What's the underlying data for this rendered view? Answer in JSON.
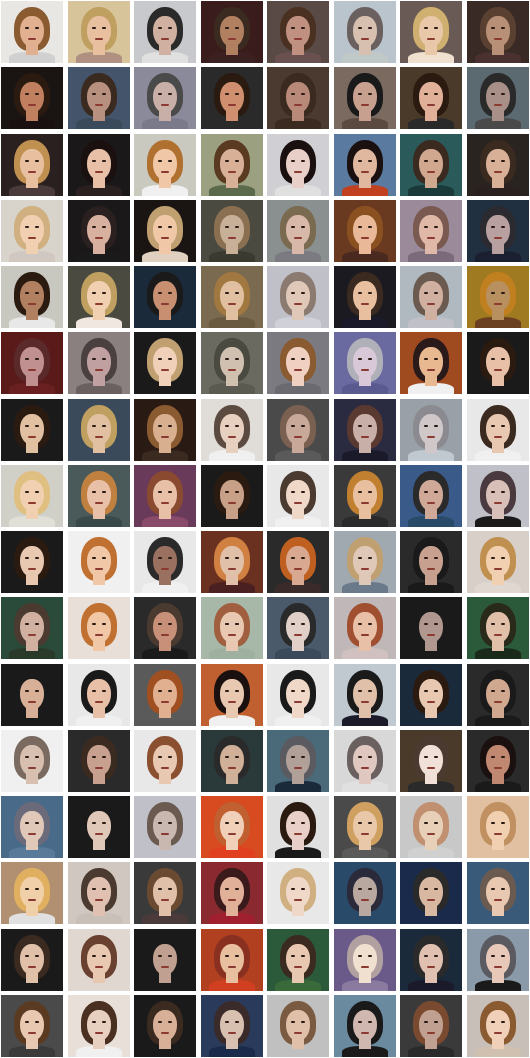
{
  "grid": {
    "rows": 16,
    "columns": 8,
    "description_key": "generated-face-samples",
    "tiles": [
      [
        "#e9e7e3",
        "#d8c49a",
        "#c8c9cc",
        "#3a1c1c",
        "#5a4a45",
        "#b9c4cc",
        "#6a5a55",
        "#3a2a25"
      ],
      [
        "#1a1412",
        "#44546a",
        "#8a8a9a",
        "#2a2a2a",
        "#4a3a30",
        "#7a6a60",
        "#4a3a2a",
        "#5a6a70"
      ],
      [
        "#2a2020",
        "#1a1818",
        "#c9c9c0",
        "#9aa080",
        "#d0d0d4",
        "#5a7aa0",
        "#2a5a5a",
        "#2a2420"
      ],
      [
        "#d8d4cc",
        "#1a1818",
        "#1a1412",
        "#4a4a40",
        "#8a9090",
        "#6a3a20",
        "#9a8a9a",
        "#203040"
      ],
      [
        "#c8c8c0",
        "#4a4a40",
        "#1a2a3a",
        "#7a6a50",
        "#c0c0c8",
        "#1a1a20",
        "#b0b8c0",
        "#a07a20"
      ],
      [
        "#5a1a1a",
        "#8a8080",
        "#1a1a1a",
        "#6a6a60",
        "#7a7a80",
        "#6a6aa0",
        "#a04a20",
        "#1a1a1a"
      ],
      [
        "#1a1a1a",
        "#3a4a5a",
        "#2a1a14",
        "#e0dcd8",
        "#4a4a4a",
        "#2a2a40",
        "#9aa0a8",
        "#e8e8e8"
      ],
      [
        "#d0d0c8",
        "#4a5a5a",
        "#6a3a5a",
        "#1a1a1a",
        "#e8e8e8",
        "#3a3a3a",
        "#3a5a8a",
        "#c0c0c8"
      ],
      [
        "#1a1a1a",
        "#f0f0f0",
        "#e8e8e8",
        "#6a3020",
        "#2a2a2a",
        "#a0a8b0",
        "#2a2a2a",
        "#d8d0c8"
      ],
      [
        "#2a4a3a",
        "#e8e0d8",
        "#2a2a2a",
        "#a8b8a8",
        "#4a5a6a",
        "#c0b8b8",
        "#1a1a1a",
        "#2a5a3a"
      ],
      [
        "#1a1a1a",
        "#e8e8e8",
        "#5a5a5a",
        "#c06030",
        "#e8e8e8",
        "#c0c8d0",
        "#1a2a3a",
        "#2a2a2a"
      ],
      [
        "#f0f0f0",
        "#2a2a2a",
        "#e8e8e8",
        "#2a3a3a",
        "#4a6a7a",
        "#d8d8d8",
        "#4a3a2a",
        "#2a2a2a"
      ],
      [
        "#4a6a8a",
        "#1a1a1a",
        "#c0c0c8",
        "#d84a20",
        "#e0e0e0",
        "#4a4a4a",
        "#c8c8c8",
        "#e0c0a0"
      ],
      [
        "#b09070",
        "#d0c8c0",
        "#3a3a3a",
        "#8a2a30",
        "#e8e8e8",
        "#2a4a6a",
        "#1a2a4a",
        "#3a5a7a"
      ],
      [
        "#1a1a1a",
        "#e0d8d0",
        "#1a1a1a",
        "#b04020",
        "#2a5a3a",
        "#6a5a8a",
        "#1a2a3a",
        "#8a9aa8"
      ],
      [
        "#4a4a4a",
        "#e8e0d8",
        "#1a1a1a",
        "#2a3a5a",
        "#c0c0c0",
        "#6a8aa0",
        "#3a3a3a",
        "#c8c0b8"
      ]
    ],
    "skin": [
      [
        "#e0b090",
        "#e8c0a0",
        "#d0b0a0",
        "#b08060",
        "#c09080",
        "#d8c0b0",
        "#e8c8a8",
        "#b89078"
      ],
      [
        "#c08060",
        "#b89080",
        "#c8b0a8",
        "#d09070",
        "#b88878",
        "#c8a090",
        "#e0b098",
        "#a89088"
      ],
      [
        "#e8c0a0",
        "#e8c0a8",
        "#f0c8a8",
        "#d8b098",
        "#e8d0c8",
        "#e0b8a0",
        "#d0a890",
        "#d8b098"
      ],
      [
        "#f0d0b0",
        "#d8b0a0",
        "#f0c8a8",
        "#c8b098",
        "#d8b8a8",
        "#e8b898",
        "#e0b8a8",
        "#b8a0a0"
      ],
      [
        "#b08060",
        "#f0d0b0",
        "#c89070",
        "#e0c0a0",
        "#e0c8b8",
        "#e8c0a0",
        "#d0b0a0",
        "#b89060"
      ],
      [
        "#c09090",
        "#c0a0a0",
        "#f0d0b8",
        "#d0c0b0",
        "#f0d0c0",
        "#d8c8d8",
        "#e8b890",
        "#e8c0a8"
      ],
      [
        "#e0c0a0",
        "#e0c0a0",
        "#d8b090",
        "#e8d0c0",
        "#c8a898",
        "#c8b0a8",
        "#d0c8c8",
        "#e8c8b0"
      ],
      [
        "#f0d0b0",
        "#e8c0a8",
        "#e8c0a8",
        "#c8a088",
        "#f0d8c8",
        "#e8c0a0",
        "#d0a898",
        "#d8c0b8"
      ],
      [
        "#e8c8b0",
        "#f0c8a8",
        "#9a7060",
        "#e0c0a8",
        "#d8a890",
        "#e0c8b8",
        "#c8a090",
        "#f0d0b0"
      ],
      [
        "#d0b0a0",
        "#f0c8a8",
        "#c89078",
        "#e8c8b0",
        "#e0d0c8",
        "#e8c0a8",
        "#b09890",
        "#e0c0a8"
      ],
      [
        "#d8b098",
        "#e8c0a8",
        "#e0b090",
        "#e8c8b0",
        "#f0d8c8",
        "#e0c0a8",
        "#e8c8b0",
        "#d0a890"
      ],
      [
        "#d8c0b0",
        "#c8a090",
        "#e8c8b0",
        "#d0b098",
        "#b0a098",
        "#e0c8c0",
        "#f0e0d8",
        "#c08870"
      ],
      [
        "#e0c8b8",
        "#e0c8b8",
        "#c8b8b0",
        "#f0d0b8",
        "#e8d0c8",
        "#e8c8a8",
        "#e8d0b8",
        "#f0d0b0"
      ],
      [
        "#f0d0a8",
        "#e0c0b0",
        "#e0c0a8",
        "#e0b098",
        "#f0d8c8",
        "#b8a8a0",
        "#d8b8a0",
        "#e8c8b0"
      ],
      [
        "#e0c0a8",
        "#e8c8b0",
        "#c0a090",
        "#e8c0a0",
        "#e8c8b0",
        "#f0e0d0",
        "#e0c0b0",
        "#e8c8b8"
      ],
      [
        "#e8c8b0",
        "#e8d0c0",
        "#d8b098",
        "#d8c0b0",
        "#e0c0a8",
        "#d0b8b0",
        "#c0a090",
        "#f0d0b8"
      ]
    ],
    "hair": [
      [
        "#8a5a30",
        "#c0a060",
        "#2a2a2a",
        "#3a2a20",
        "#4a3020",
        "#6a6060",
        "#d0b070",
        "#5a4030"
      ],
      [
        "#2a1a10",
        "#3a2a20",
        "#4a4a4a",
        "#2a1a10",
        "#3a2a20",
        "#1a1a1a",
        "#2a1a10",
        "#2a2a2a"
      ],
      [
        "#c09050",
        "#1a1010",
        "#b07030",
        "#5a3a20",
        "#1a1010",
        "#1a1010",
        "#3a2a20",
        "#3a2a20"
      ],
      [
        "#d0b080",
        "#2a2020",
        "#c0a070",
        "#8a7050",
        "#7a6a50",
        "#8a5020",
        "#7a5a50",
        "#2a2a30"
      ],
      [
        "#2a1a10",
        "#c0a060",
        "#1a1a1a",
        "#a07840",
        "#8a7a70",
        "#3a2a20",
        "#6a5a50",
        "#c08020"
      ],
      [
        "#5a2a2a",
        "#4a4040",
        "#c0a070",
        "#4a4a40",
        "#8a5a30",
        "#b0b0b8",
        "#2a1a1a",
        "#2a1a10"
      ],
      [
        "#2a1a10",
        "#c0a060",
        "#8a5a30",
        "#5a4a40",
        "#7a6050",
        "#5a3a30",
        "#8a8a90",
        "#3a2a20"
      ],
      [
        "#e0c080",
        "#c08040",
        "#8a4a30",
        "#2a1a10",
        "#4a3a30",
        "#c08030",
        "#2a2a2a",
        "#4a3a40"
      ],
      [
        "#2a1a10",
        "#c07030",
        "#2a2a2a",
        "#d08040",
        "#c06020",
        "#c0a070",
        "#1a1a1a",
        "#c09050"
      ],
      [
        "#4a3a30",
        "#c07030",
        "#4a3a30",
        "#a06040",
        "#2a2a2a",
        "#a05030",
        "#1a1a1a",
        "#2a2a1a"
      ],
      [
        "#1a1a1a",
        "#1a1a1a",
        "#a05020",
        "#1a1010",
        "#1a1a1a",
        "#1a1a1a",
        "#2a1a10",
        "#1a1a1a"
      ],
      [
        "#7a6a60",
        "#3a2a20",
        "#8a5030",
        "#2a2a2a",
        "#5a5a60",
        "#6a6060",
        "#4a3a30",
        "#1a1010"
      ],
      [
        "#6a6a7a",
        "#1a1a1a",
        "#6a5a50",
        "#c06030",
        "#2a1a10",
        "#d0a060",
        "#c09070",
        "#c09060"
      ],
      [
        "#e0b060",
        "#4a3a30",
        "#6a4a30",
        "#3a1a1a",
        "#d0b080",
        "#2a2a3a",
        "#2a2a2a",
        "#6a5a50"
      ],
      [
        "#3a2a20",
        "#6a4030",
        "#1a1a1a",
        "#8a3020",
        "#3a2a20",
        "#b0a0a0",
        "#2a2a2a",
        "#5a5a60"
      ],
      [
        "#5a3a20",
        "#4a3020",
        "#3a2a20",
        "#3a2a2a",
        "#7a5a40",
        "#1a1a1a",
        "#7a4a30",
        "#8a5a30"
      ]
    ],
    "clothing": [
      [
        "#d0d0d0",
        "#b09080",
        "#e0e0e0",
        "#3a2020",
        "#6a5050",
        "#c0c8c8",
        "#f0e0d0",
        "#4a3030"
      ],
      [
        "#1a1010",
        "#3a4a5a",
        "#7a7a8a",
        "#2a2a2a",
        "#3a2a20",
        "#5a4a40",
        "#2a2a2a",
        "#4a4a4a"
      ],
      [
        "#4a3a3a",
        "#2a2020",
        "#f0f0f0",
        "#5a6a4a",
        "#e0e0e0",
        "#c04020",
        "#1a3a3a",
        "#2a2020"
      ],
      [
        "#d0c8c0",
        "#1a1a1a",
        "#e0d0c0",
        "#3a3a30",
        "#7a7a80",
        "#4a2a20",
        "#7a6a7a",
        "#1a2030"
      ],
      [
        "#e8e8e8",
        "#f0e8e0",
        "#1a2a3a",
        "#6a5a40",
        "#d0d0d8",
        "#1a1a2a",
        "#c0c0c8",
        "#6a4020"
      ],
      [
        "#6a2020",
        "#6a6060",
        "#1a1a1a",
        "#5a5a50",
        "#6a6a70",
        "#5a5a90",
        "#f0f0f0",
        "#1a1a1a"
      ],
      [
        "#1a1a1a",
        "#3a4a5a",
        "#3a2a20",
        "#f0f0f0",
        "#5a5a5a",
        "#1a1a2a",
        "#c0c8d0",
        "#f0f0f0"
      ],
      [
        "#e0e0d8",
        "#3a4a4a",
        "#8a4a6a",
        "#1a1a1a",
        "#f0f0f0",
        "#2a2a2a",
        "#2a4a6a",
        "#1a1a1a"
      ],
      [
        "#1a1a1a",
        "#f0f0f0",
        "#f0f0f0",
        "#4a2020",
        "#3a2a2a",
        "#6a7a8a",
        "#1a1a1a",
        "#e0d8d0"
      ],
      [
        "#2a3a2a",
        "#e8e0d8",
        "#1a1a1a",
        "#a0b0a0",
        "#3a4a5a",
        "#d0c0c0",
        "#1a1a1a",
        "#1a2a1a"
      ],
      [
        "#1a1a1a",
        "#f0f0f0",
        "#5a5a5a",
        "#f0f0f0",
        "#f0f0f0",
        "#1a1a2a",
        "#1a2a3a",
        "#1a1a1a"
      ],
      [
        "#f0f0f0",
        "#2a2a2a",
        "#e8e8e8",
        "#2a3a3a",
        "#1a2a3a",
        "#e0e0e0",
        "#2a2a2a",
        "#1a1a1a"
      ],
      [
        "#5a7a9a",
        "#1a1a1a",
        "#c0c0c8",
        "#e04020",
        "#1a1a1a",
        "#5a5a5a",
        "#d0d0d0",
        "#e0c0a0"
      ],
      [
        "#e0e0e0",
        "#c8c0b8",
        "#4a3a3a",
        "#a02030",
        "#e8e8e8",
        "#2a4a6a",
        "#1a2a4a",
        "#3a5a7a"
      ],
      [
        "#1a1a1a",
        "#e0d8d0",
        "#1a1a1a",
        "#d04020",
        "#3a6a3a",
        "#8a7aa0",
        "#1a1a2a",
        "#1a1a1a"
      ],
      [
        "#3a3a3a",
        "#f0f0f0",
        "#1a1a1a",
        "#1a2a4a",
        "#c0c0c0",
        "#1a1a1a",
        "#2a2a2a",
        "#d0c0b0"
      ]
    ]
  }
}
